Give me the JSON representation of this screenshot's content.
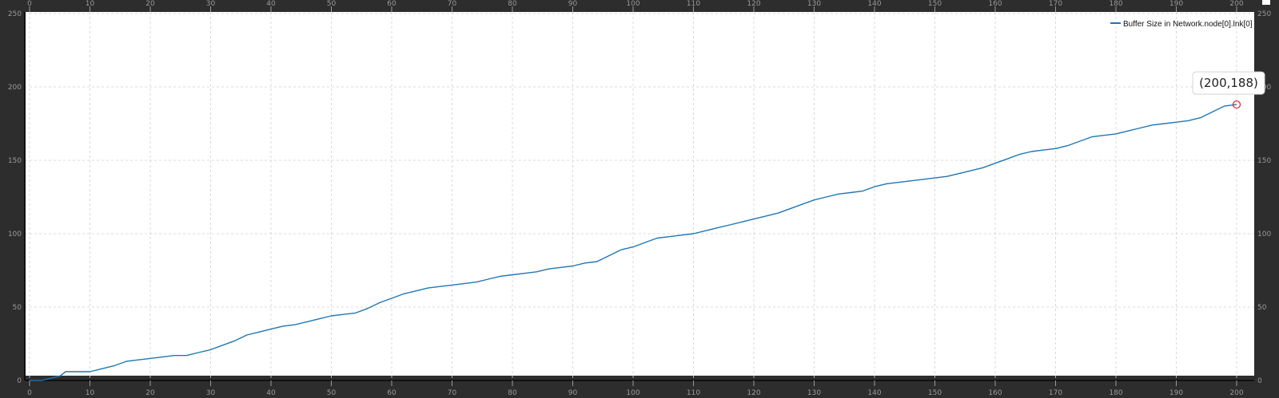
{
  "chart_data": {
    "type": "line",
    "title": "",
    "xlabel": "",
    "ylabel": "",
    "xlim": [
      0,
      200
    ],
    "ylim": [
      0,
      250
    ],
    "x_ticks": [
      0,
      10,
      20,
      30,
      40,
      50,
      60,
      70,
      80,
      90,
      100,
      110,
      120,
      130,
      140,
      150,
      160,
      170,
      180,
      190,
      200
    ],
    "y_ticks": [
      0,
      50,
      100,
      150,
      200,
      250
    ],
    "x_tick_labels": [
      "0",
      "10",
      "20",
      "30",
      "40",
      "50",
      "60",
      "70",
      "80",
      "90",
      "100",
      "110",
      "120",
      "130",
      "140",
      "150",
      "160",
      "170",
      "180",
      "190",
      "200"
    ],
    "y_tick_labels": [
      "0",
      "50",
      "100",
      "150",
      "200",
      "250"
    ],
    "grid": true,
    "legend_position": "top-right",
    "series": [
      {
        "name": "Buffer Size in Network.node[0].lnk[0]",
        "color": "#1f77b4",
        "x": [
          0,
          2,
          4,
          5,
          6,
          8,
          10,
          12,
          14,
          16,
          18,
          20,
          22,
          24,
          26,
          28,
          30,
          32,
          34,
          36,
          38,
          40,
          42,
          44,
          46,
          48,
          50,
          52,
          54,
          56,
          58,
          60,
          62,
          64,
          66,
          68,
          70,
          72,
          74,
          76,
          78,
          80,
          82,
          84,
          86,
          88,
          90,
          92,
          94,
          96,
          98,
          100,
          102,
          104,
          106,
          108,
          110,
          112,
          114,
          116,
          118,
          120,
          122,
          124,
          126,
          128,
          130,
          132,
          134,
          136,
          138,
          140,
          142,
          144,
          146,
          148,
          150,
          152,
          154,
          156,
          158,
          160,
          162,
          164,
          166,
          168,
          170,
          172,
          174,
          176,
          178,
          180,
          182,
          184,
          186,
          188,
          190,
          192,
          194,
          196,
          198,
          200
        ],
        "values": [
          0,
          0,
          2,
          3,
          6,
          6,
          6,
          8,
          10,
          13,
          14,
          15,
          16,
          17,
          17,
          19,
          21,
          24,
          27,
          31,
          33,
          35,
          37,
          38,
          40,
          42,
          44,
          45,
          46,
          49,
          53,
          56,
          59,
          61,
          63,
          64,
          65,
          66,
          67,
          69,
          71,
          72,
          73,
          74,
          76,
          77,
          78,
          80,
          81,
          85,
          89,
          91,
          94,
          97,
          98,
          99,
          100,
          102,
          104,
          106,
          108,
          110,
          112,
          114,
          117,
          120,
          123,
          125,
          127,
          128,
          129,
          132,
          134,
          135,
          136,
          137,
          138,
          139,
          141,
          143,
          145,
          148,
          151,
          154,
          156,
          157,
          158,
          160,
          163,
          166,
          167,
          168,
          170,
          172,
          174,
          175,
          176,
          177,
          179,
          183,
          187,
          188
        ]
      }
    ],
    "annotations": [
      {
        "text": "(200,188)",
        "x": 200,
        "y": 188
      }
    ]
  }
}
